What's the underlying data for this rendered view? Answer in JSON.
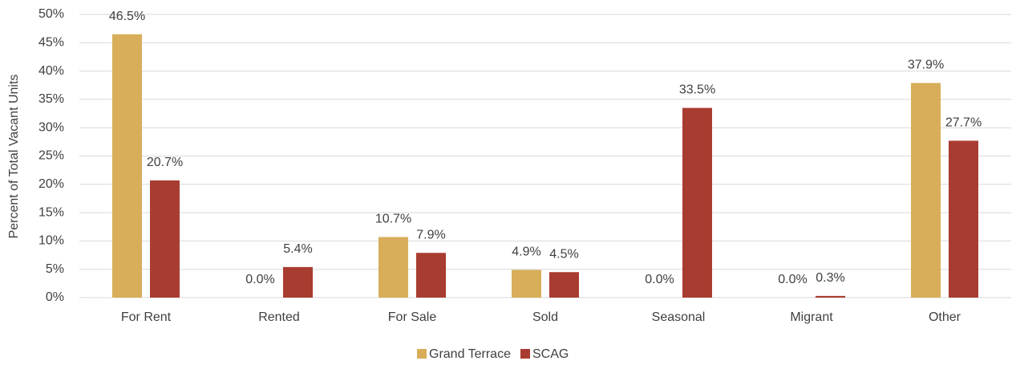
{
  "chart_data": {
    "type": "bar",
    "y_label": "Percent of Total Vacant Units",
    "categories": [
      "For Rent",
      "Rented",
      "For Sale",
      "Sold",
      "Seasonal",
      "Migrant",
      "Other"
    ],
    "series": [
      {
        "name": "Grand Terrace",
        "color": "#d8ae5a",
        "values": [
          46.5,
          0.0,
          10.7,
          4.9,
          0.0,
          0.0,
          37.9
        ],
        "value_labels": [
          "46.5%",
          "0.0%",
          "10.7%",
          "4.9%",
          "0.0%",
          "0.0%",
          "37.9%"
        ]
      },
      {
        "name": "SCAG",
        "color": "#a93c30",
        "values": [
          20.7,
          5.4,
          7.9,
          4.5,
          33.5,
          0.3,
          27.7
        ],
        "value_labels": [
          "20.7%",
          "5.4%",
          "7.9%",
          "4.5%",
          "33.5%",
          "0.3%",
          "27.7%"
        ]
      }
    ],
    "ylim": [
      0,
      50
    ],
    "yticks": [
      {
        "value": 0,
        "label": "0%"
      },
      {
        "value": 5,
        "label": "5%"
      },
      {
        "value": 10,
        "label": "10%"
      },
      {
        "value": 15,
        "label": "15%"
      },
      {
        "value": 20,
        "label": "20%"
      },
      {
        "value": 25,
        "label": "25%"
      },
      {
        "value": 30,
        "label": "30%"
      },
      {
        "value": 35,
        "label": "35%"
      },
      {
        "value": 40,
        "label": "40%"
      },
      {
        "value": 45,
        "label": "45%"
      },
      {
        "value": 50,
        "label": "50%"
      }
    ],
    "grid": true,
    "legend": "bottom"
  }
}
